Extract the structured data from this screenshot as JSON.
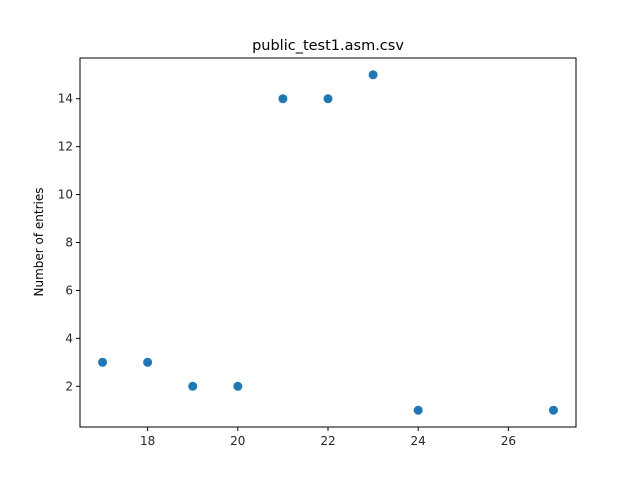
{
  "chart_data": {
    "type": "scatter",
    "title": "public_test1.asm.csv",
    "xlabel": "",
    "ylabel": "Number of entries",
    "xlim": [
      16.5,
      27.5
    ],
    "ylim": [
      0.3,
      15.7
    ],
    "xticks": [
      18,
      20,
      22,
      24,
      26
    ],
    "yticks": [
      2,
      4,
      6,
      8,
      10,
      12,
      14
    ],
    "grid": false,
    "points": [
      {
        "x": 17,
        "y": 3
      },
      {
        "x": 18,
        "y": 3
      },
      {
        "x": 19,
        "y": 2
      },
      {
        "x": 20,
        "y": 2
      },
      {
        "x": 21,
        "y": 14
      },
      {
        "x": 22,
        "y": 14
      },
      {
        "x": 23,
        "y": 15
      },
      {
        "x": 24,
        "y": 1
      },
      {
        "x": 27,
        "y": 1
      }
    ],
    "colors": {
      "marker": "#1f77b4",
      "axes": "#000000",
      "text": "#262626"
    }
  }
}
